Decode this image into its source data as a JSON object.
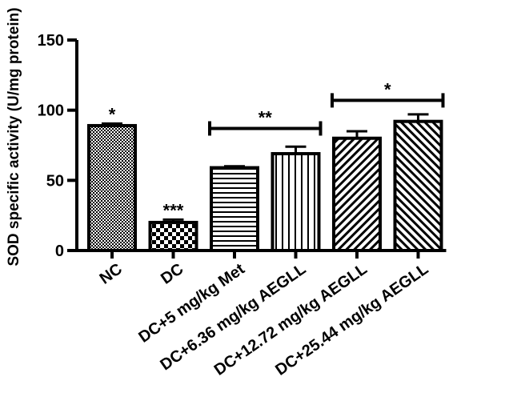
{
  "chart_data": {
    "type": "bar",
    "title": "",
    "xlabel": "",
    "ylabel": "SOD specific activity (U/mg protein)",
    "ylim": [
      0,
      150
    ],
    "yticks": [
      "0",
      "50",
      "100",
      "150"
    ],
    "grid": false,
    "categories": [
      "NC",
      "DC",
      "DC+5 mg/kg Met",
      "DC+6.36 mg/kg AEGLL",
      "DC+12.72 mg/kg AEGLL",
      "DC+25.44 mg/kg AEGLL"
    ],
    "values": [
      89,
      20,
      59,
      69,
      80,
      92
    ],
    "errors": [
      1.5,
      2,
      1,
      5,
      5,
      5
    ],
    "patterns": [
      "dots",
      "checker",
      "horizontal-lines",
      "vertical-lines",
      "diag-up",
      "diag-down"
    ],
    "bar_annotations": [
      "*",
      "***",
      "",
      "",
      "",
      ""
    ],
    "brackets": [
      {
        "from": 2,
        "to": 3,
        "y": 87,
        "label": "**"
      },
      {
        "from": 4,
        "to": 5,
        "y": 107,
        "label": "*"
      }
    ],
    "bar_color": "#000000"
  }
}
